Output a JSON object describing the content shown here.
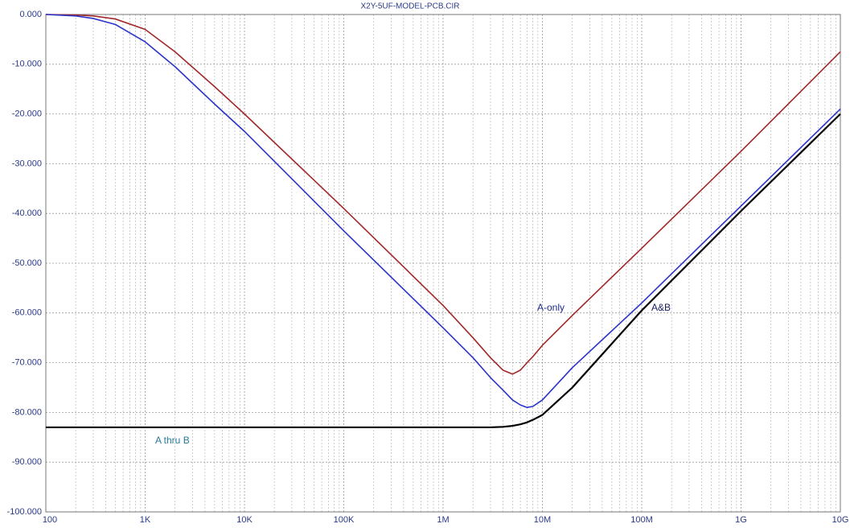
{
  "chart_data": {
    "type": "line",
    "title": "X2Y-5UF-MODEL-PCB.CIR",
    "x": [
      100,
      200,
      300,
      500,
      1000,
      2000,
      5000,
      10000,
      100000,
      1000000,
      2000000,
      3000000,
      4000000,
      5000000,
      6000000,
      7000000,
      8000000,
      10000000,
      20000000,
      100000000,
      1000000000,
      10000000000
    ],
    "series": [
      {
        "name": "A-only",
        "color": "#a02828",
        "values": [
          0,
          -0.1,
          -0.3,
          -0.9,
          -3,
          -7.5,
          -14.5,
          -20,
          -39,
          -58.5,
          -65,
          -69,
          -71.5,
          -72.3,
          -71.5,
          -70,
          -68.8,
          -66.5,
          -60.5,
          -47,
          -27.5,
          -7.5
        ]
      },
      {
        "name": "A&B",
        "color": "#2a34c8",
        "values": [
          0,
          -0.3,
          -0.8,
          -2,
          -5.5,
          -10.5,
          -18,
          -23.5,
          -43.5,
          -63,
          -69,
          -73,
          -75.5,
          -77.5,
          -78.5,
          -79,
          -78.8,
          -77.5,
          -71,
          -58,
          -38.5,
          -19
        ]
      },
      {
        "name": "A thru B",
        "color": "#000000",
        "values": [
          -83,
          -83,
          -83,
          -83,
          -83,
          -83,
          -83,
          -83,
          -83,
          -83,
          -83,
          -83,
          -82.9,
          -82.7,
          -82.4,
          -82,
          -81.5,
          -80.5,
          -75,
          -59.5,
          -39.5,
          -20
        ]
      }
    ],
    "xscale": "log",
    "xlim": [
      100,
      10000000000
    ],
    "xticks": [
      100,
      {
        "value": 1000,
        "label": "1K"
      },
      {
        "value": 10000,
        "label": "10K"
      },
      {
        "value": 100000,
        "label": "100K"
      },
      {
        "value": 1000000,
        "label": "1M"
      },
      {
        "value": 10000000,
        "label": "10M"
      },
      {
        "value": 100000000,
        "label": "100M"
      },
      {
        "value": 1000000000,
        "label": "1G"
      },
      {
        "value": 10000000000,
        "label": "10G"
      }
    ],
    "ylim": [
      -100,
      0
    ],
    "yticks": [
      {
        "value": 0,
        "label": "0.000"
      },
      {
        "value": -10,
        "label": "-10.000"
      },
      {
        "value": -20,
        "label": "-20.000"
      },
      {
        "value": -30,
        "label": "-30.000"
      },
      {
        "value": -40,
        "label": "-40.000"
      },
      {
        "value": -50,
        "label": "-50.000"
      },
      {
        "value": -60,
        "label": "-60.000"
      },
      {
        "value": -70,
        "label": "-70.000"
      },
      {
        "value": -80,
        "label": "-80.000"
      },
      {
        "value": -90,
        "label": "-90.000"
      },
      {
        "value": -100,
        "label": "-100.000"
      }
    ],
    "grid": true
  }
}
